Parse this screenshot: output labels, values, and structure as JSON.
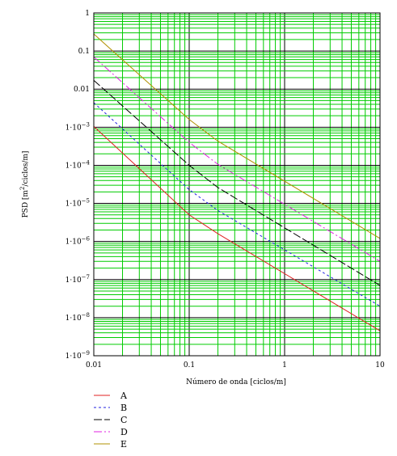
{
  "chart_data": {
    "type": "line",
    "title": "",
    "xlabel": "Número de onda [ciclos/m]",
    "ylabel_main": "PSD [m",
    "ylabel_sup": "2",
    "ylabel_end": "/ciclos/m]",
    "x_scale": "log",
    "y_scale": "log",
    "xlim": [
      0.01,
      10
    ],
    "ylim": [
      1e-09,
      1
    ],
    "grid": true,
    "legend_position": "bottom-left",
    "x_ticks": [
      {
        "value": 0.01,
        "label": "0.01"
      },
      {
        "value": 0.1,
        "label": "0.1"
      },
      {
        "value": 1,
        "label": "1"
      },
      {
        "value": 10,
        "label": "10"
      }
    ],
    "y_ticks": [
      {
        "value": 1,
        "label": "1"
      },
      {
        "value": 0.1,
        "label": "0.1"
      },
      {
        "value": 0.01,
        "label": "0.01"
      },
      {
        "value": 0.001,
        "label": "1·10"
      },
      {
        "value": 0.0001,
        "label": "1·10"
      },
      {
        "value": 1e-05,
        "label": "1·10"
      },
      {
        "value": 1e-06,
        "label": "1·10"
      },
      {
        "value": 1e-07,
        "label": "1·10"
      },
      {
        "value": 1e-08,
        "label": "1·10"
      },
      {
        "value": 1e-09,
        "label": "1·10"
      }
    ],
    "y_tick_exponents": [
      "",
      "",
      "",
      "−3",
      "−4",
      "−5",
      "−6",
      "−7",
      "−8",
      "−9"
    ],
    "series": [
      {
        "name": "A",
        "color": "#e02020",
        "dash": "",
        "x": [
          0.01,
          0.1,
          0.2,
          10
        ],
        "y": [
          0.00105,
          5e-06,
          1.6e-06,
          4.5e-09
        ]
      },
      {
        "name": "B",
        "color": "#2020e0",
        "dash": "3,3",
        "x": [
          0.01,
          0.1,
          0.2,
          10
        ],
        "y": [
          0.0044,
          2.3e-05,
          6.5e-06,
          2e-08
        ]
      },
      {
        "name": "C",
        "color": "#000000",
        "dash": "10,3",
        "x": [
          0.01,
          0.1,
          0.2,
          10
        ],
        "y": [
          0.017,
          0.0001,
          2.6e-05,
          7e-08
        ]
      },
      {
        "name": "D",
        "color": "#e020e0",
        "dash": "10,3,2,3",
        "x": [
          0.01,
          0.1,
          0.2,
          10
        ],
        "y": [
          0.07,
          0.0004,
          0.000106,
          3e-07
        ]
      },
      {
        "name": "E",
        "color": "#b09000",
        "dash": "",
        "x": [
          0.01,
          0.1,
          0.2,
          10
        ],
        "y": [
          0.28,
          0.0016,
          0.00043,
          1.2e-06
        ]
      }
    ]
  }
}
